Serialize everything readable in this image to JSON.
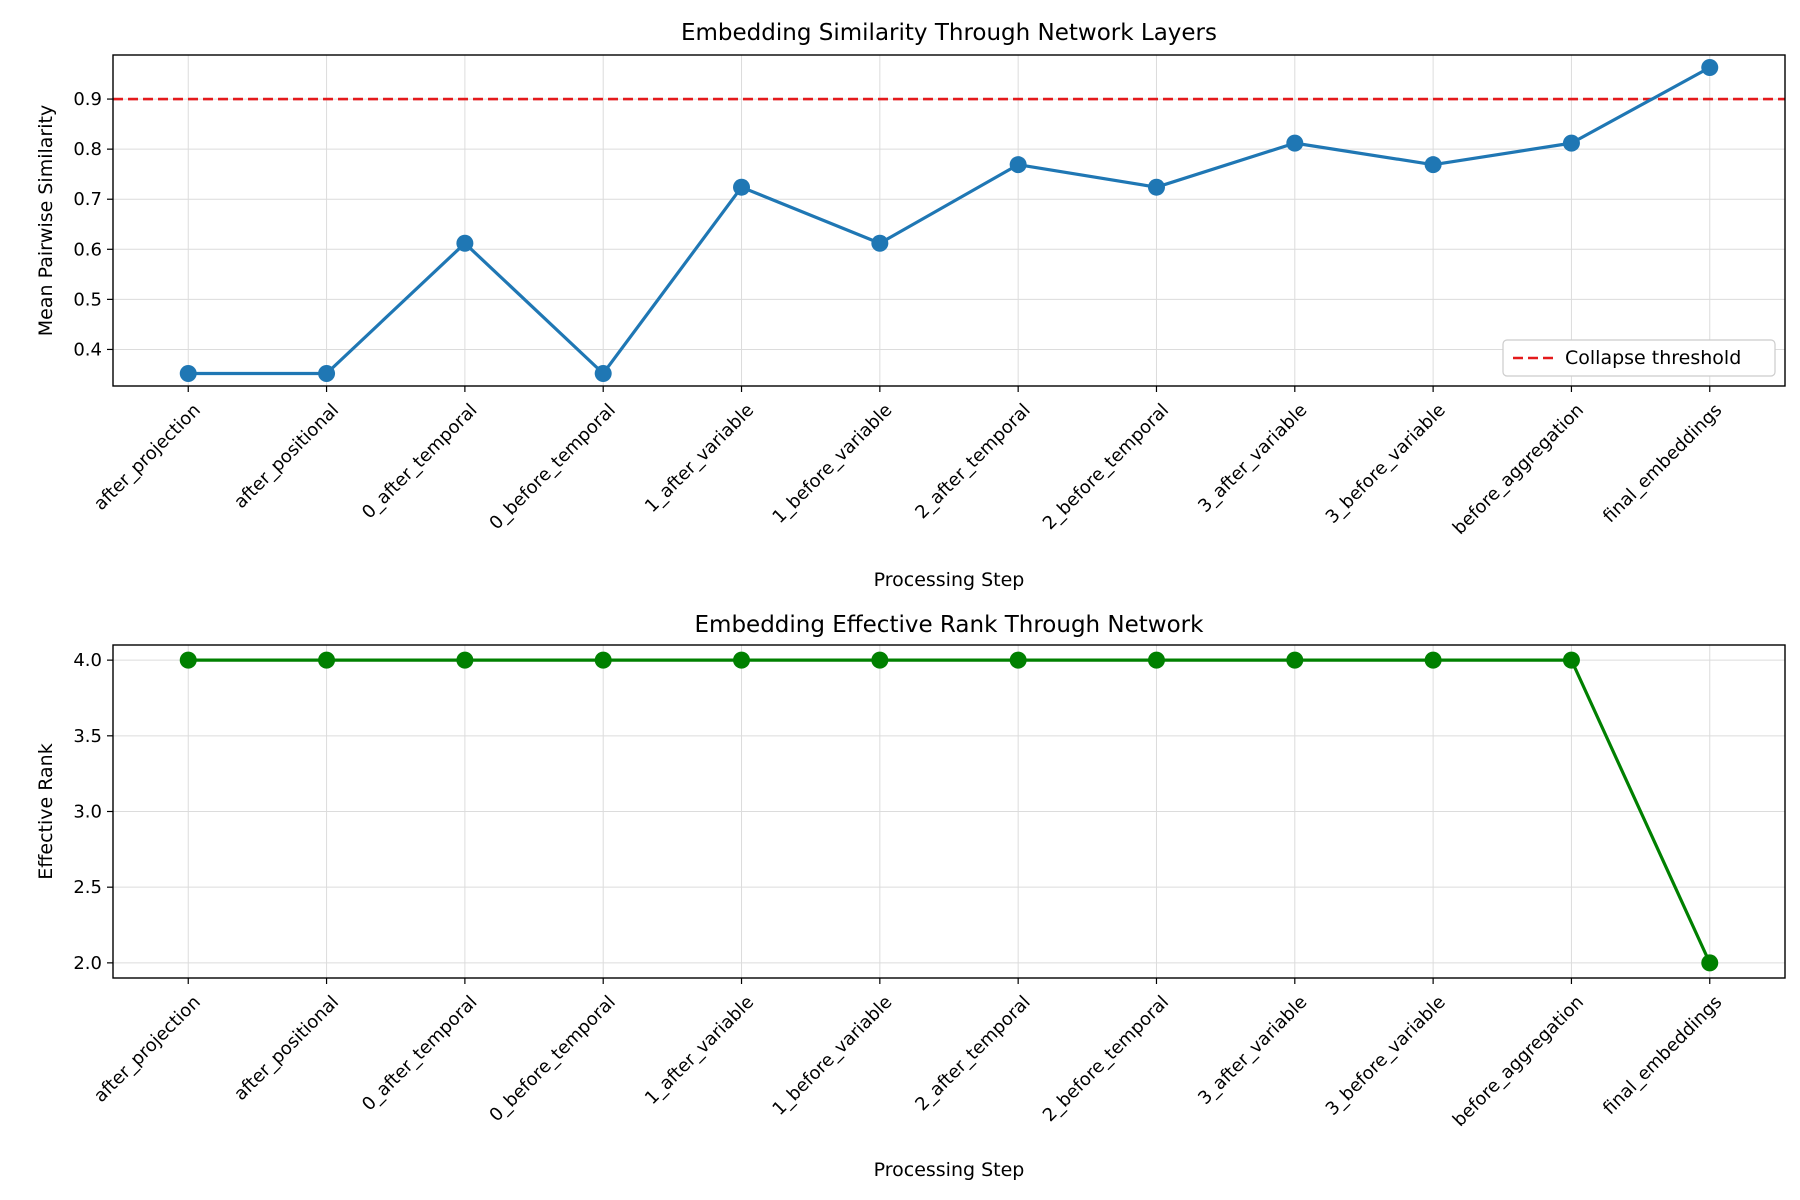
{
  "chart_data": [
    {
      "type": "line",
      "title": "Embedding Similarity Through Network Layers",
      "xlabel": "Processing Step",
      "ylabel": "Mean Pairwise Similarity",
      "categories": [
        "after_projection",
        "after_positional",
        "0_after_temporal",
        "0_before_temporal",
        "1_after_variable",
        "1_before_variable",
        "2_after_temporal",
        "2_before_temporal",
        "3_after_variable",
        "3_before_variable",
        "before_aggregation",
        "final_embeddings"
      ],
      "series": [
        {
          "values": [
            0.352,
            0.352,
            0.612,
            0.352,
            0.724,
            0.612,
            0.769,
            0.724,
            0.812,
            0.769,
            0.812,
            0.963
          ],
          "color": "#1f77b4",
          "marker": "circle"
        }
      ],
      "reference_lines": [
        {
          "name": "Collapse threshold",
          "y": 0.9,
          "color": "#e41a1c",
          "style": "dashed"
        }
      ],
      "ylim": [
        0.327,
        0.988
      ],
      "yticks": [
        0.4,
        0.5,
        0.6,
        0.7,
        0.8,
        0.9
      ],
      "ytick_labels": [
        "0.4",
        "0.5",
        "0.6",
        "0.7",
        "0.8",
        "0.9"
      ],
      "grid": true,
      "legend_placement": "lower-right"
    },
    {
      "type": "line",
      "title": "Embedding Effective Rank Through Network",
      "xlabel": "Processing Step",
      "ylabel": "Effective Rank",
      "categories": [
        "after_projection",
        "after_positional",
        "0_after_temporal",
        "0_before_temporal",
        "1_after_variable",
        "1_before_variable",
        "2_after_temporal",
        "2_before_temporal",
        "3_after_variable",
        "3_before_variable",
        "before_aggregation",
        "final_embeddings"
      ],
      "series": [
        {
          "values": [
            4,
            4,
            4,
            4,
            4,
            4,
            4,
            4,
            4,
            4,
            4,
            2
          ],
          "color": "#008000",
          "marker": "circle"
        }
      ],
      "ylim": [
        1.9,
        4.1
      ],
      "yticks": [
        2.0,
        2.5,
        3.0,
        3.5,
        4.0
      ],
      "ytick_labels": [
        "2.0",
        "2.5",
        "3.0",
        "3.5",
        "4.0"
      ],
      "grid": true
    }
  ]
}
